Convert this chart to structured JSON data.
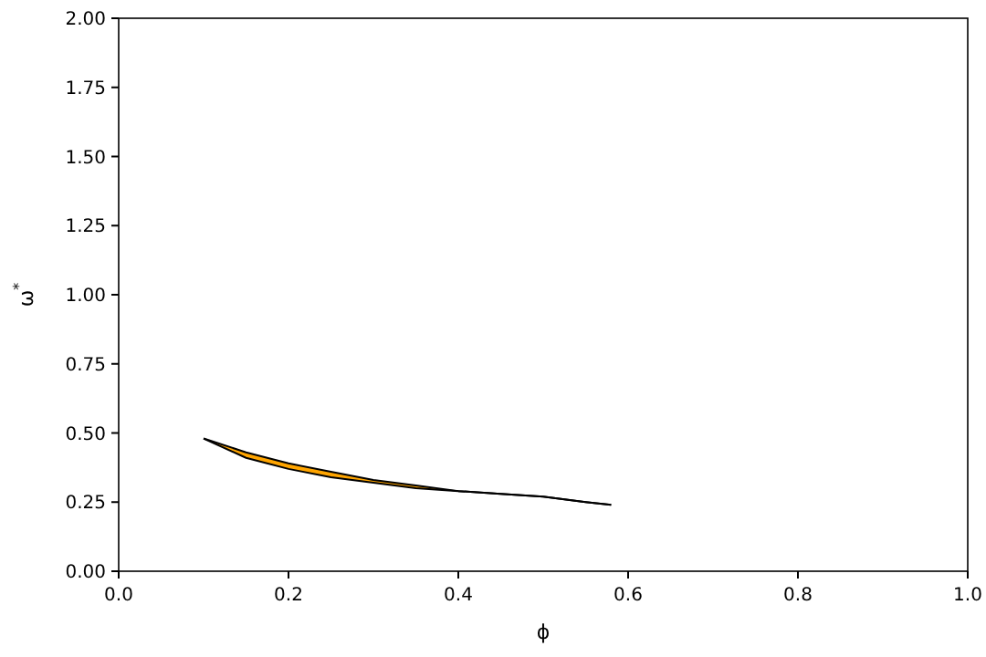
{
  "chart_data": {
    "type": "line",
    "xlabel": "ϕ",
    "ylabel": "ω$^{*}$",
    "x": [
      0.1,
      0.15,
      0.2,
      0.25,
      0.3,
      0.35,
      0.4,
      0.45,
      0.5,
      0.55,
      0.58
    ],
    "series": [
      {
        "color": "#000000",
        "values": [
          0.48,
          0.43,
          0.39,
          0.36,
          0.33,
          0.31,
          0.29,
          0.28,
          0.27,
          0.25,
          0.24
        ],
        "upper": [
          0.48,
          0.43,
          0.39,
          0.36,
          0.33,
          0.31,
          0.29,
          0.28,
          0.27,
          0.25,
          0.24
        ],
        "lower": [
          0.48,
          0.41,
          0.37,
          0.34,
          0.32,
          0.3,
          0.29,
          0.28,
          0.27,
          0.25,
          0.24
        ]
      }
    ],
    "xlim": [
      0,
      1
    ],
    "xticks": [
      {
        "value": 0,
        "label": "0.0"
      },
      {
        "value": 0.2,
        "label": "0.2"
      },
      {
        "value": 0.4,
        "label": "0.4"
      },
      {
        "value": 0.6,
        "label": "0.6"
      },
      {
        "value": 0.8,
        "label": "0.8"
      },
      {
        "value": 1,
        "label": "1.0"
      }
    ],
    "ylim": [
      0,
      2
    ],
    "yticks": [
      {
        "value": 0,
        "label": "0.00"
      },
      {
        "value": 0.25,
        "label": "0.25"
      },
      {
        "value": 0.5,
        "label": "0.50"
      },
      {
        "value": 0.75,
        "label": "0.75"
      },
      {
        "value": 1,
        "label": "1.00"
      },
      {
        "value": 1.25,
        "label": "1.25"
      },
      {
        "value": 1.5,
        "label": "1.50"
      },
      {
        "value": 1.75,
        "label": "1.75"
      },
      {
        "value": 2,
        "label": "2.00"
      }
    ]
  }
}
